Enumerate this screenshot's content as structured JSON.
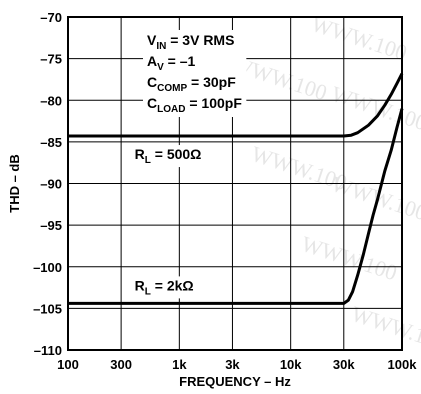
{
  "chart_data": {
    "type": "line",
    "x_scale": "log",
    "xlabel": "FREQUENCY – Hz",
    "ylabel": "THD – dB",
    "xlim": [
      100,
      100000
    ],
    "ylim": [
      -110,
      -70
    ],
    "grid": true,
    "x_ticks": [
      {
        "value": 100,
        "label": "100"
      },
      {
        "value": 300,
        "label": "300"
      },
      {
        "value": 1000,
        "label": "1k"
      },
      {
        "value": 3000,
        "label": "3k"
      },
      {
        "value": 10000,
        "label": "10k"
      },
      {
        "value": 30000,
        "label": "30k"
      },
      {
        "value": 100000,
        "label": "100k"
      }
    ],
    "y_ticks": [
      {
        "value": -70,
        "label": "–70"
      },
      {
        "value": -75,
        "label": "–75"
      },
      {
        "value": -80,
        "label": "–80"
      },
      {
        "value": -85,
        "label": "–85"
      },
      {
        "value": -90,
        "label": "–90"
      },
      {
        "value": -95,
        "label": "–95"
      },
      {
        "value": -100,
        "label": "–100"
      },
      {
        "value": -105,
        "label": "–105"
      },
      {
        "value": -110,
        "label": "–110"
      }
    ],
    "conditions": [
      {
        "main": "V",
        "sub": "IN",
        "rest": " = 3V RMS"
      },
      {
        "main": "A",
        "sub": "V",
        "rest": " = –1"
      },
      {
        "main": "C",
        "sub": "COMP",
        "rest": " = 30pF"
      },
      {
        "main": "C",
        "sub": "LOAD",
        "rest": " = 100pF"
      }
    ],
    "series": [
      {
        "name": "R_L = 500Ω",
        "label_main": "R",
        "label_sub": "L",
        "label_rest": " = 500Ω",
        "points": [
          [
            100,
            -84.3
          ],
          [
            10000,
            -84.3
          ],
          [
            30000,
            -84.3
          ],
          [
            35000,
            -84.2
          ],
          [
            40000,
            -83.9
          ],
          [
            50000,
            -83.0
          ],
          [
            60000,
            -81.9
          ],
          [
            70000,
            -80.6
          ],
          [
            80000,
            -79.3
          ],
          [
            90000,
            -78.0
          ],
          [
            100000,
            -76.8
          ]
        ]
      },
      {
        "name": "R_L = 2kΩ",
        "label_main": "R",
        "label_sub": "L",
        "label_rest": " = 2kΩ",
        "points": [
          [
            100,
            -104.4
          ],
          [
            10000,
            -104.4
          ],
          [
            30000,
            -104.4
          ],
          [
            33000,
            -104.0
          ],
          [
            36000,
            -103.0
          ],
          [
            40000,
            -101.0
          ],
          [
            45000,
            -98.5
          ],
          [
            50000,
            -96.0
          ],
          [
            55000,
            -93.8
          ],
          [
            60000,
            -92.0
          ],
          [
            70000,
            -88.5
          ],
          [
            80000,
            -86.0
          ],
          [
            90000,
            -83.3
          ],
          [
            100000,
            -81.0
          ]
        ]
      }
    ],
    "watermark": "WWW.100"
  }
}
